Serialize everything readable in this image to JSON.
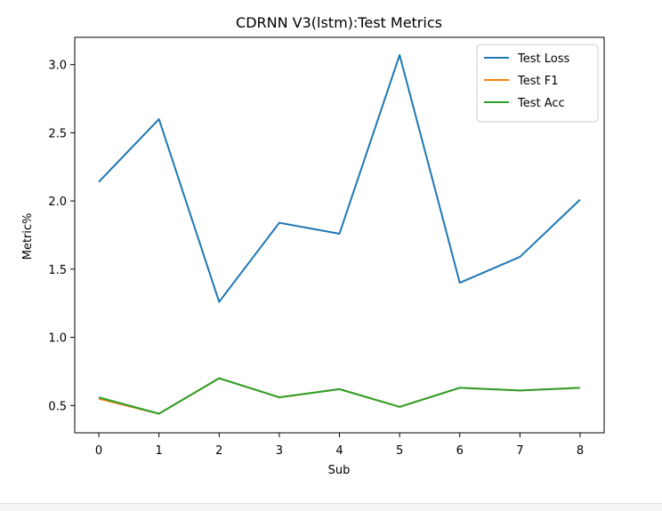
{
  "chart_data": {
    "type": "line",
    "title": "CDRNN V3(lstm):Test Metrics",
    "xlabel": "Sub",
    "ylabel": "Metric%",
    "x": [
      0,
      1,
      2,
      3,
      4,
      5,
      6,
      7,
      8
    ],
    "xticks": [
      "0",
      "1",
      "2",
      "3",
      "4",
      "5",
      "6",
      "7",
      "8"
    ],
    "yticks": [
      "0.5",
      "1.0",
      "1.5",
      "2.0",
      "2.5",
      "3.0"
    ],
    "xlim": [
      -0.4,
      8.4
    ],
    "ylim": [
      0.3,
      3.2
    ],
    "grid": false,
    "legend_position": "top-right",
    "series": [
      {
        "name": "Test Loss",
        "color": "#1f77b4",
        "values": [
          2.14,
          2.6,
          1.26,
          1.84,
          1.76,
          3.07,
          1.4,
          1.59,
          2.01
        ]
      },
      {
        "name": "Test F1",
        "color": "#ff7f0e",
        "values": [
          0.55,
          0.44,
          0.7,
          0.56,
          0.62,
          0.49,
          0.63,
          0.61,
          0.63
        ]
      },
      {
        "name": "Test Acc",
        "color": "#2ca02c",
        "values": [
          0.56,
          0.44,
          0.7,
          0.56,
          0.62,
          0.49,
          0.63,
          0.61,
          0.63
        ]
      }
    ]
  }
}
